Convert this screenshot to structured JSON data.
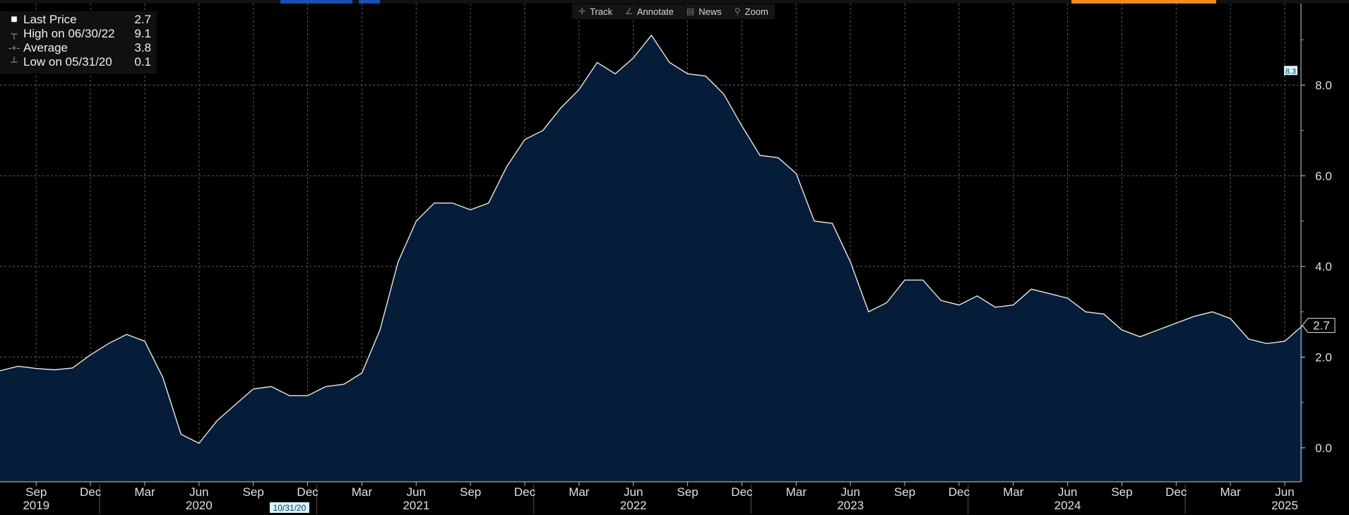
{
  "legend": {
    "last_price": {
      "label": "Last Price",
      "value": "2.7"
    },
    "high": {
      "label": "High on 06/30/22",
      "value": "9.1"
    },
    "average": {
      "label": "Average",
      "value": "3.8"
    },
    "low": {
      "label": "Low on 05/31/20",
      "value": "0.1"
    }
  },
  "toolbar": {
    "track": "Track",
    "annotate": "Annotate",
    "news": "News",
    "zoom": "Zoom"
  },
  "colors": {
    "fill": "#061d3a",
    "line": "#e8e8e8",
    "grid": "#5a5a5a",
    "marker_bg": "#d8f4ff",
    "marker_fg": "#10384c",
    "orange": "#f28a1e",
    "blue": "#1a4fb4"
  },
  "chart_data": {
    "type": "area",
    "x_start": "2019-06-30",
    "frequency": "monthly",
    "values": [
      1.7,
      1.8,
      1.75,
      1.72,
      1.76,
      2.05,
      2.3,
      2.5,
      2.35,
      1.55,
      0.3,
      0.1,
      0.6,
      0.95,
      1.3,
      1.35,
      1.15,
      1.15,
      1.35,
      1.4,
      1.65,
      2.6,
      4.1,
      5.0,
      5.4,
      5.4,
      5.25,
      5.4,
      6.2,
      6.8,
      7.0,
      7.5,
      7.9,
      8.5,
      8.25,
      8.6,
      9.1,
      8.5,
      8.25,
      8.2,
      7.8,
      7.1,
      6.45,
      6.4,
      6.05,
      5.0,
      4.95,
      4.1,
      3.0,
      3.2,
      3.7,
      3.7,
      3.25,
      3.15,
      3.35,
      3.1,
      3.15,
      3.5,
      3.4,
      3.3,
      3.0,
      2.95,
      2.6,
      2.45,
      2.6,
      2.75,
      2.9,
      3.0,
      2.85,
      2.4,
      2.3,
      2.35,
      2.7
    ],
    "y_ticks": [
      "0.0",
      "2.0",
      "4.0",
      "6.0",
      "8.0"
    ],
    "ylim": [
      -0.75,
      9.8
    ],
    "x_month_labels": [
      "Sep",
      "Dec",
      "Mar",
      "Jun",
      "Sep",
      "Dec",
      "Mar",
      "Jun",
      "Sep",
      "Dec",
      "Mar",
      "Jun",
      "Sep",
      "Dec",
      "Mar",
      "Jun",
      "Sep",
      "Dec",
      "Mar",
      "Jun",
      "Sep",
      "Dec",
      "Mar",
      "Jun"
    ],
    "x_year_labels": [
      "2019",
      "2020",
      "2021",
      "2022",
      "2023",
      "2024",
      "2025"
    ],
    "last_value_label": "2.7",
    "marker_label": "8.3",
    "date_marker_label": "10/31/20",
    "grid": true,
    "legend_position": "top-left"
  }
}
